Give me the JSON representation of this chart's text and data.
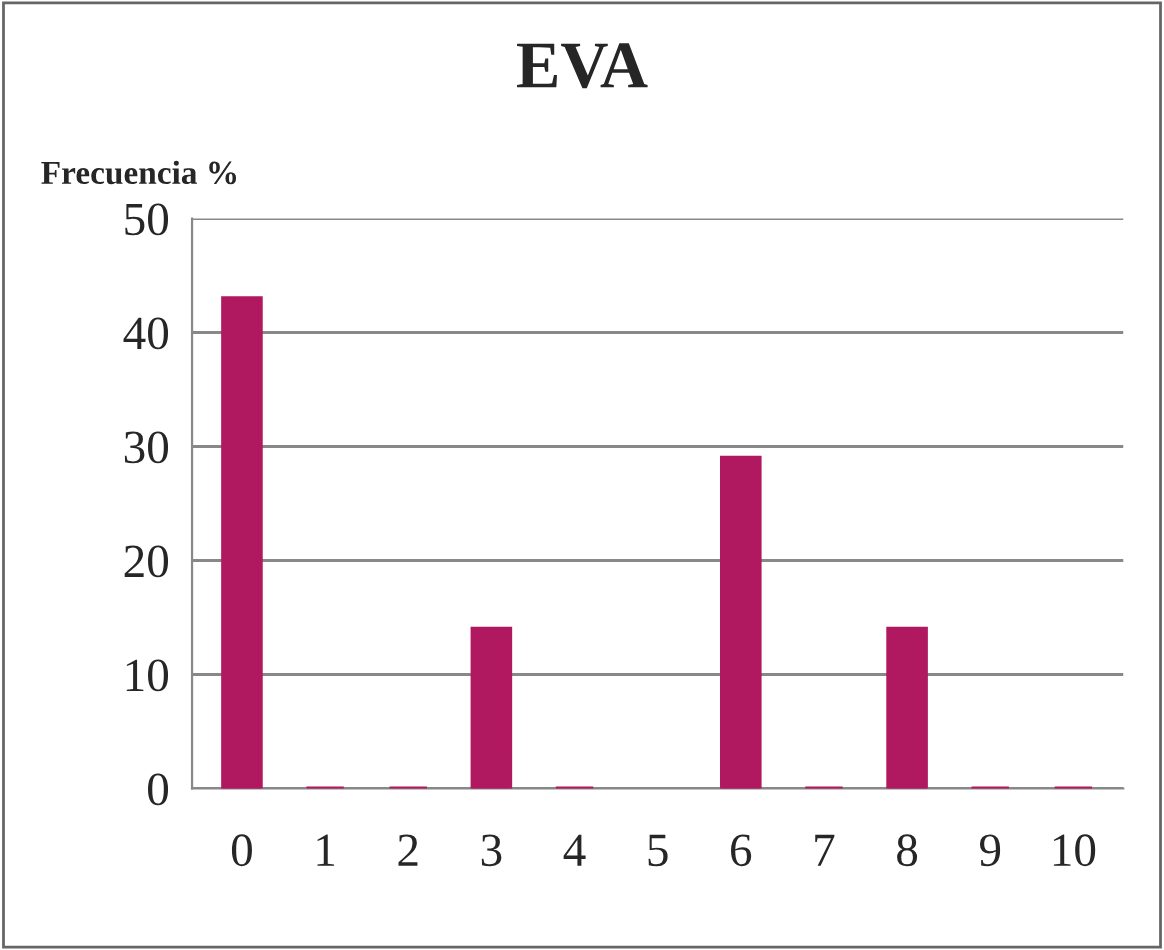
{
  "chart_data": {
    "type": "bar",
    "title": "EVA",
    "ylabel": "Frecuencia %",
    "categories": [
      "0",
      "1",
      "2",
      "3",
      "4",
      "5",
      "6",
      "7",
      "8",
      "9",
      "10"
    ],
    "values": [
      43,
      0,
      0,
      14,
      0,
      null,
      29,
      0,
      14,
      0,
      0
    ],
    "color": "#b0185f",
    "ylim": [
      0,
      50
    ],
    "yticks": [
      0,
      10,
      20,
      30,
      40,
      50
    ],
    "grid": "y",
    "legend": false
  }
}
